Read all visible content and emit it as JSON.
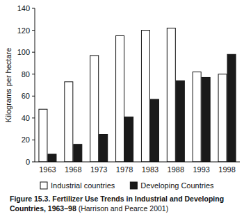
{
  "chart_data": {
    "type": "bar",
    "title": "Figure 15.3. Fertilizer Use Trends in Industrial and Developing Countries, 1963–98",
    "subtitle": "(Harrison and Pearce 2001)",
    "y_label": "Kilograms per hectare",
    "categories": [
      "1963",
      "1968",
      "1973",
      "1978",
      "1983",
      "1988",
      "1993",
      "1998"
    ],
    "series": [
      {
        "name": "Industrial countries",
        "color": "#ffffff",
        "values": [
          48,
          73,
          97,
          115,
          120,
          122,
          82,
          80
        ]
      },
      {
        "name": "Developing Countries",
        "color": "#1a1a1a",
        "values": [
          7,
          16,
          25,
          41,
          57,
          74,
          77,
          98
        ]
      }
    ],
    "ylim": [
      0,
      140
    ],
    "yticks": [
      0,
      20,
      40,
      60,
      80,
      100,
      120,
      140
    ],
    "grid": false,
    "legend": "bottom"
  }
}
